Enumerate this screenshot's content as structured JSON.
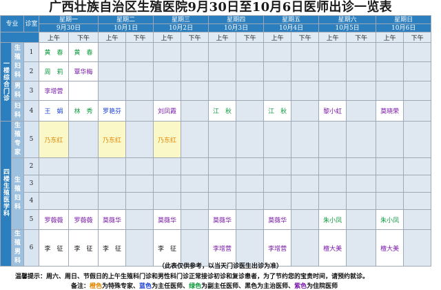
{
  "title": "广西壮族自治区生殖医院9月30日至10月6日医师出诊一览表",
  "header": {
    "specialty": "专业",
    "room": "诊室",
    "days": [
      {
        "day": "星期一",
        "date": "9月30日"
      },
      {
        "day": "星期二",
        "date": "10月1日"
      },
      {
        "day": "星期三",
        "date": "10月2日"
      },
      {
        "day": "星期四",
        "date": "10月3日"
      },
      {
        "day": "星期五",
        "date": "10月4日"
      },
      {
        "day": "星期六",
        "date": "10月5日"
      },
      {
        "day": "星期日",
        "date": "10月6日"
      }
    ],
    "am": "上午",
    "pm": "下午"
  },
  "groups": {
    "g1": "一楼综合门诊",
    "g2": "四楼生殖医学科"
  },
  "subs": {
    "s1": "生殖妇科",
    "s2": "男科",
    "s3": "妇科",
    "s4": "生殖专家",
    "s5": "生殖妇科",
    "s6": "生殖男科"
  },
  "rooms": {
    "r1": "1",
    "r2": "2",
    "r3": "3",
    "r4": "4",
    "r5": "5",
    "r6": "2",
    "r7": "3",
    "r8": "4",
    "r9": "5",
    "r10": "6"
  },
  "cells": {
    "c1_1": "黄　春",
    "c1_2": "黄　春",
    "c2_1": "周　莉",
    "c2_2": "覃华梅",
    "c3_1": "李增营",
    "c4_1": "王　娟",
    "c4_2": "林　秀",
    "c4_3": "罗艳芬",
    "c4_5": "刘凤霞",
    "c4_7": "江　秋",
    "c4_9": "江　秋",
    "c4_11": "黎小虹",
    "c4_13": "莫晓荣",
    "c5_1": "乃东红",
    "c5_3": "乃东红",
    "c5_5": "乃东红",
    "c9_1": "罗薇薇",
    "c9_2": "罗薇薇",
    "c9_3": "莫薇华",
    "c9_5": "莫薇华",
    "c9_7": "莫薇华",
    "c9_9": "莫薇华",
    "c9_11": "朱小凤",
    "c9_13": "朱小凤",
    "c10_1": "李　征",
    "c10_2": "李　征",
    "c10_3": "李　征",
    "c10_5": "李　征",
    "c10_7": "李增营",
    "c10_9": "李增营",
    "c10_11": "檀大美",
    "c10_13": "檀大美"
  },
  "notes": {
    "n1": "（此表仅供参考，以当天门诊医生出诊为准）",
    "n2": "温馨提示：周六、周日、节假日的上午生殖科门诊和男性科门诊正常接诊初诊和复诊患者，为了节约您的宝贵时间，请预约就诊。",
    "n3_prefix": "备注：",
    "legend": [
      {
        "c": "橙色",
        "t": "为特殊专家、"
      },
      {
        "c": "蓝色",
        "t": "为主任医师、"
      },
      {
        "c": "绿色",
        "t": "为副主任医师、"
      },
      {
        "c": "黑色",
        "t": "为主治医师、"
      },
      {
        "c": "紫色",
        "t": "为住院医师"
      }
    ]
  },
  "colors": {
    "header_blue": "#2b7fbf",
    "orange": "#e08600",
    "blue": "#1a3fd6",
    "green": "#0b9a3c",
    "black": "#111111",
    "purple": "#7a1aa8"
  }
}
